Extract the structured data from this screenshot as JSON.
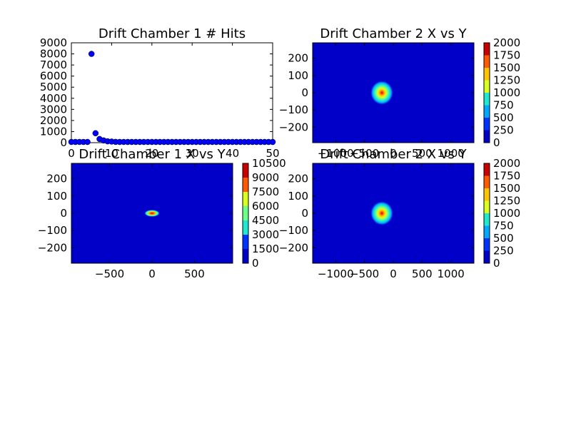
{
  "chart_data": [
    {
      "type": "scatter",
      "title": "Drift Chamber 1 # Hits",
      "xlabel": "",
      "ylabel": "",
      "xlim": [
        0,
        50
      ],
      "ylim": [
        0,
        9000
      ],
      "xticks": [
        "0",
        "10",
        "20",
        "30",
        "40",
        "50"
      ],
      "yticks": [
        "0",
        "1000",
        "2000",
        "3000",
        "4000",
        "5000",
        "6000",
        "7000",
        "8000",
        "9000"
      ],
      "marker_color": "#0000ff",
      "series": [
        {
          "x": [
            0,
            1,
            2,
            3,
            4,
            5,
            6,
            7,
            8,
            9,
            10,
            11,
            12,
            13,
            14,
            15,
            16,
            17,
            18,
            19,
            20,
            21,
            22,
            23,
            24,
            25,
            26,
            27,
            28,
            29,
            30,
            31,
            32,
            33,
            34,
            35,
            36,
            37,
            38,
            39,
            40,
            41,
            42,
            43,
            44,
            45,
            46,
            47,
            48,
            49,
            50
          ],
          "y": [
            0,
            0,
            0,
            0,
            0,
            8000,
            850,
            330,
            200,
            120,
            100,
            70,
            50,
            40,
            30,
            25,
            20,
            15,
            10,
            10,
            8,
            5,
            5,
            4,
            3,
            3,
            2,
            2,
            2,
            1,
            1,
            1,
            1,
            1,
            1,
            0,
            0,
            0,
            0,
            0,
            0,
            0,
            0,
            0,
            0,
            0,
            0,
            0,
            0,
            0,
            0
          ]
        }
      ]
    },
    {
      "type": "heatmap",
      "title": "Drift Chamber 2 X vs Y",
      "xlim": [
        -1400,
        1400
      ],
      "ylim": [
        -290,
        290
      ],
      "xticks": [
        "−1000",
        "−500",
        "0",
        "500",
        "1000"
      ],
      "yticks": [
        "−200",
        "−100",
        "0",
        "100",
        "200"
      ],
      "colorbar_ticks": [
        "0",
        "250",
        "500",
        "750",
        "1000",
        "1250",
        "1500",
        "1750",
        "2000"
      ],
      "zlim": [
        0,
        2000
      ],
      "hotspot": {
        "x": 0,
        "y": 0,
        "peak": 2000
      }
    },
    {
      "type": "heatmap",
      "title": "Drift Chamber 1 X vs Y",
      "xlim": [
        -950,
        950
      ],
      "ylim": [
        -290,
        290
      ],
      "xticks": [
        "−500",
        "0",
        "500"
      ],
      "yticks": [
        "−200",
        "−100",
        "0",
        "100",
        "200"
      ],
      "colorbar_ticks": [
        "0",
        "1500",
        "3000",
        "4500",
        "6000",
        "7500",
        "9000",
        "10500"
      ],
      "zlim": [
        0,
        10500
      ],
      "hotspot": {
        "x": 0,
        "y": 0,
        "peak": 10500
      }
    },
    {
      "type": "heatmap",
      "title": "Drift Chamber 2 X vs Y",
      "xlim": [
        -1400,
        1400
      ],
      "ylim": [
        -290,
        290
      ],
      "xticks": [
        "−1000",
        "−500",
        "0",
        "500",
        "1000"
      ],
      "yticks": [
        "−200",
        "−100",
        "0",
        "100",
        "200"
      ],
      "colorbar_ticks": [
        "0",
        "250",
        "500",
        "750",
        "1000",
        "1250",
        "1500",
        "1750",
        "2000"
      ],
      "zlim": [
        0,
        2000
      ],
      "hotspot": {
        "x": 0,
        "y": 0,
        "peak": 2000
      }
    }
  ],
  "colors": {
    "jet": [
      "#0000c8",
      "#0033ff",
      "#00a8ff",
      "#20e8d0",
      "#6cff8c",
      "#d8ff20",
      "#ffc400",
      "#ff5a00",
      "#c80000"
    ],
    "marker": "#0000ff"
  }
}
